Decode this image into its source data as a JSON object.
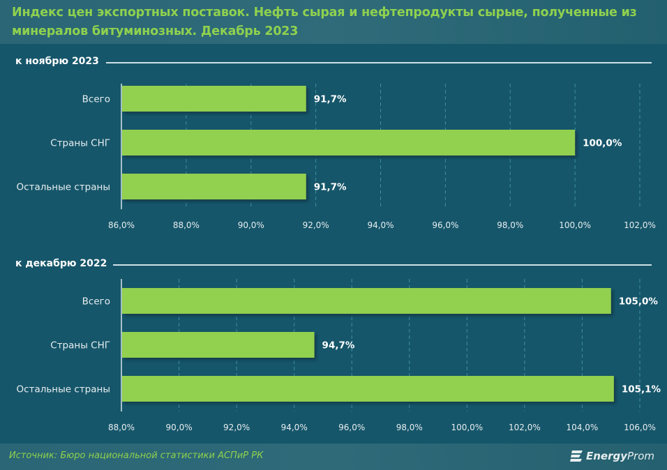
{
  "title": "Индекс цен экспортных поставок. Нефть сырая и нефтепродукты сырые, полученные из минералов битуминозных. Декабрь 2023",
  "footer": {
    "source": "Источник: Бюро национальной статистики АСПиР РК",
    "logo_bold": "Energy",
    "logo_rest": "Prom"
  },
  "colors": {
    "bar": "#92d050",
    "accent": "#8fd14f",
    "background": "#16566a"
  },
  "chart_data": [
    {
      "type": "bar",
      "orientation": "horizontal",
      "title": "к ноябрю 2023",
      "categories": [
        "Всего",
        "Страны СНГ",
        "Остальные страны"
      ],
      "values": [
        91.7,
        100.0,
        91.7
      ],
      "labels": [
        "91,7%",
        "100,0%",
        "91,7%"
      ],
      "xlim": [
        86,
        102
      ],
      "xticks": [
        "86,0%",
        "88,0%",
        "90,0%",
        "92,0%",
        "94,0%",
        "96,0%",
        "98,0%",
        "100,0%",
        "102,0%"
      ],
      "grid": true
    },
    {
      "type": "bar",
      "orientation": "horizontal",
      "title": "к декабрю 2022",
      "categories": [
        "Всего",
        "Страны СНГ",
        "Остальные страны"
      ],
      "values": [
        105.0,
        94.7,
        105.1
      ],
      "labels": [
        "105,0%",
        "94,7%",
        "105,1%"
      ],
      "xlim": [
        88,
        106
      ],
      "xticks": [
        "88,0%",
        "90,0%",
        "92,0%",
        "94,0%",
        "96,0%",
        "98,0%",
        "100,0%",
        "102,0%",
        "104,0%",
        "106,0%"
      ],
      "grid": true
    }
  ]
}
